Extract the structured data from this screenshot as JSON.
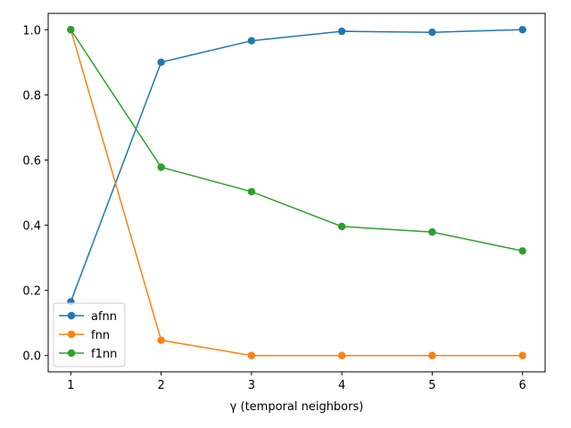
{
  "chart_data": {
    "type": "line",
    "title": "",
    "xlabel": "γ (temporal neighbors)",
    "ylabel": "",
    "x": [
      1,
      2,
      3,
      4,
      5,
      6
    ],
    "xlim": [
      0.75,
      6.25
    ],
    "ylim": [
      -0.05,
      1.05
    ],
    "xticks": [
      "1",
      "2",
      "3",
      "4",
      "5",
      "6"
    ],
    "yticks": [
      "0.0",
      "0.2",
      "0.4",
      "0.6",
      "0.8",
      "1.0"
    ],
    "grid": false,
    "legend_position": "lower-left",
    "series": [
      {
        "name": "afnn",
        "color": "#1f77b4",
        "values": [
          0.165,
          0.9,
          0.966,
          0.995,
          0.992,
          1.0
        ]
      },
      {
        "name": "fnn",
        "color": "#ff7f0e",
        "values": [
          1.0,
          0.047,
          0.0,
          0.0,
          0.0,
          0.0
        ]
      },
      {
        "name": "f1nn",
        "color": "#2ca02c",
        "values": [
          1.0,
          0.578,
          0.503,
          0.396,
          0.379,
          0.321
        ]
      }
    ]
  }
}
